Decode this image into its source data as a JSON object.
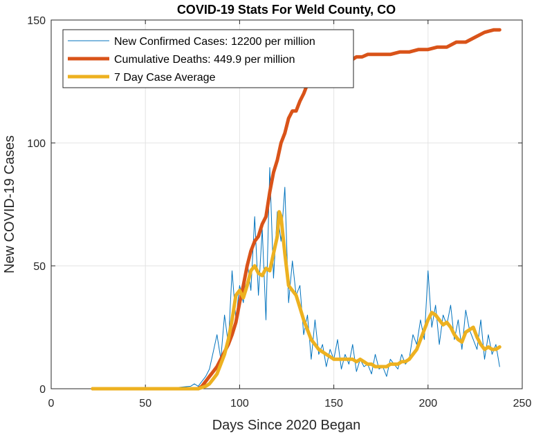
{
  "chart_data": {
    "type": "line",
    "title": "COVID-19 Stats For Weld County, CO",
    "xlabel": "Days Since 2020 Began",
    "ylabel": "New COVID-19 Cases",
    "xlim": [
      0,
      250
    ],
    "ylim": [
      0,
      150
    ],
    "xticks": [
      0,
      50,
      100,
      150,
      200,
      250
    ],
    "yticks": [
      0,
      50,
      100,
      150
    ],
    "grid": true,
    "legend_position": "top-left",
    "series": [
      {
        "name": "New Confirmed Cases: 12200 per million",
        "color": "#0072BD",
        "style": "thin-line",
        "x": [
          22,
          40,
          60,
          74,
          76,
          78,
          80,
          82,
          84,
          86,
          88,
          90,
          92,
          94,
          96,
          98,
          100,
          102,
          104,
          106,
          108,
          110,
          112,
          114,
          116,
          118,
          120,
          122,
          124,
          126,
          128,
          130,
          132,
          134,
          136,
          138,
          140,
          142,
          144,
          146,
          148,
          150,
          152,
          154,
          156,
          158,
          160,
          162,
          164,
          166,
          168,
          170,
          172,
          174,
          176,
          178,
          180,
          182,
          184,
          186,
          188,
          190,
          192,
          194,
          196,
          198,
          200,
          202,
          204,
          206,
          208,
          210,
          212,
          214,
          216,
          218,
          220,
          222,
          224,
          226,
          228,
          230,
          232,
          234,
          236,
          238
        ],
        "y": [
          0,
          0,
          0,
          1,
          2,
          1,
          3,
          5,
          8,
          15,
          22,
          12,
          30,
          18,
          48,
          28,
          42,
          35,
          52,
          40,
          70,
          38,
          65,
          28,
          90,
          45,
          72,
          60,
          82,
          35,
          52,
          38,
          42,
          22,
          30,
          12,
          28,
          14,
          18,
          9,
          16,
          12,
          20,
          8,
          14,
          10,
          18,
          7,
          12,
          9,
          10,
          6,
          14,
          8,
          9,
          5,
          12,
          10,
          8,
          14,
          10,
          12,
          22,
          18,
          28,
          20,
          48,
          25,
          34,
          18,
          30,
          26,
          34,
          20,
          28,
          16,
          32,
          24,
          20,
          16,
          28,
          12,
          22,
          14,
          18,
          9
        ]
      },
      {
        "name": "Cumulative Deaths: 449.9 per million",
        "color": "#D95319",
        "style": "thick-line",
        "x": [
          22,
          60,
          75,
          78,
          80,
          82,
          84,
          86,
          88,
          90,
          92,
          94,
          96,
          98,
          100,
          102,
          104,
          106,
          108,
          110,
          112,
          114,
          116,
          118,
          120,
          122,
          124,
          126,
          128,
          130,
          132,
          134,
          136,
          138,
          140,
          142,
          144,
          146,
          148,
          150,
          152,
          154,
          156,
          158,
          160,
          162,
          165,
          168,
          170,
          175,
          180,
          185,
          190,
          195,
          200,
          205,
          210,
          215,
          220,
          225,
          230,
          235,
          238
        ],
        "y": [
          0,
          0,
          0,
          0,
          1,
          3,
          5,
          7,
          9,
          12,
          15,
          18,
          22,
          27,
          35,
          42,
          50,
          56,
          60,
          62,
          67,
          70,
          80,
          88,
          93,
          100,
          104,
          110,
          113,
          113,
          117,
          120,
          124,
          126,
          126,
          127,
          128,
          129,
          130,
          131,
          131,
          132,
          132,
          133,
          134,
          135,
          135,
          136,
          136,
          136,
          136,
          137,
          137,
          138,
          138,
          139,
          139,
          141,
          141,
          143,
          145,
          146,
          146
        ]
      },
      {
        "name": "7 Day Case Average",
        "color": "#EDB120",
        "style": "thick-line",
        "x": [
          22,
          40,
          60,
          74,
          78,
          80,
          82,
          84,
          86,
          88,
          90,
          92,
          94,
          96,
          98,
          100,
          102,
          104,
          106,
          108,
          110,
          112,
          114,
          116,
          118,
          120,
          121,
          122,
          124,
          126,
          128,
          130,
          132,
          134,
          136,
          138,
          140,
          142,
          144,
          146,
          148,
          150,
          152,
          154,
          156,
          158,
          160,
          162,
          164,
          166,
          168,
          170,
          172,
          174,
          176,
          178,
          180,
          182,
          184,
          186,
          188,
          190,
          192,
          194,
          196,
          198,
          200,
          202,
          204,
          206,
          208,
          210,
          212,
          214,
          216,
          218,
          220,
          222,
          224,
          226,
          228,
          230,
          232,
          234,
          236,
          238
        ],
        "y": [
          0,
          0,
          0,
          0,
          0,
          0.5,
          1,
          2,
          4,
          6,
          10,
          14,
          20,
          28,
          38,
          40,
          37,
          42,
          48,
          50,
          47,
          46,
          49,
          48,
          55,
          62,
          72,
          70,
          55,
          42,
          40,
          38,
          33,
          28,
          24,
          20,
          18,
          16,
          15,
          14,
          13,
          12,
          12,
          12,
          12,
          12,
          12,
          11,
          12,
          11,
          10,
          10,
          9,
          9,
          9,
          9,
          10,
          10,
          10,
          11,
          11,
          12,
          14,
          16,
          20,
          24,
          28,
          31,
          30,
          28,
          26,
          27,
          25,
          22,
          20,
          19,
          23,
          24,
          25,
          21,
          18,
          16,
          17,
          16,
          16,
          17
        ]
      }
    ]
  }
}
